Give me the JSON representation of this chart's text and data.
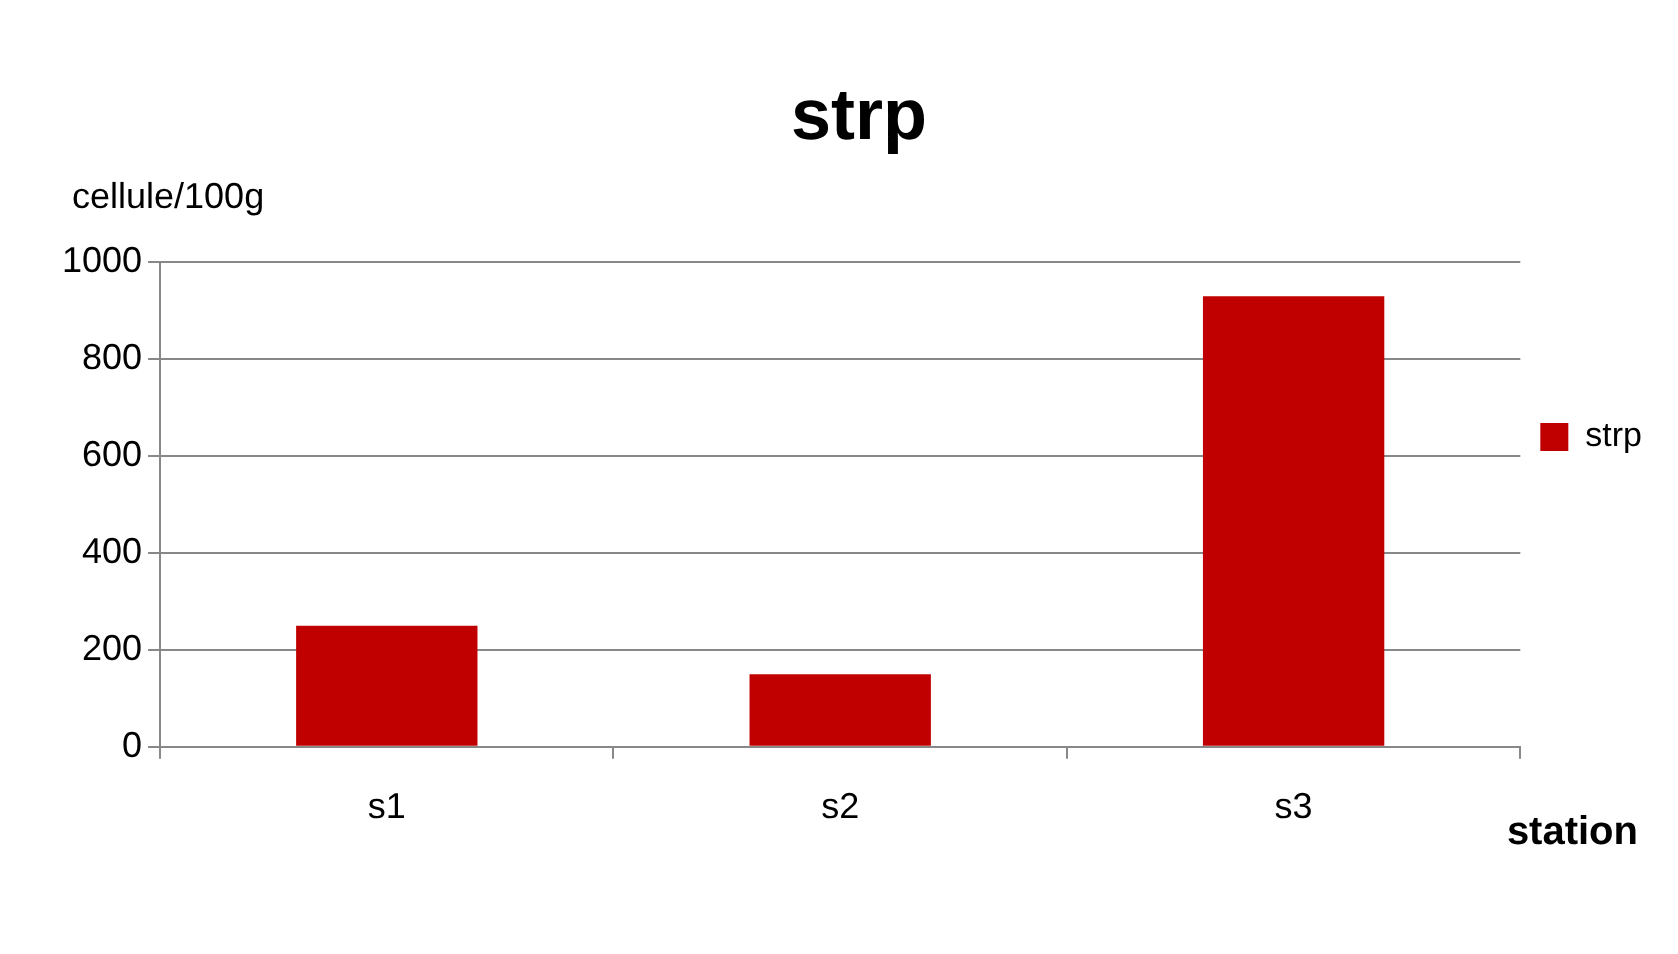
{
  "chart_data": {
    "type": "bar",
    "title": "strp",
    "ylabel": "cellule/100g",
    "xlabel": "station",
    "categories": [
      "s1",
      "s2",
      "s3"
    ],
    "series": [
      {
        "name": "strp",
        "color": "#c00000",
        "values": [
          250,
          150,
          930
        ]
      }
    ],
    "ylim": [
      0,
      1000
    ],
    "yticks": [
      0,
      200,
      400,
      600,
      800,
      1000
    ],
    "grid": "y",
    "legend": "right"
  }
}
